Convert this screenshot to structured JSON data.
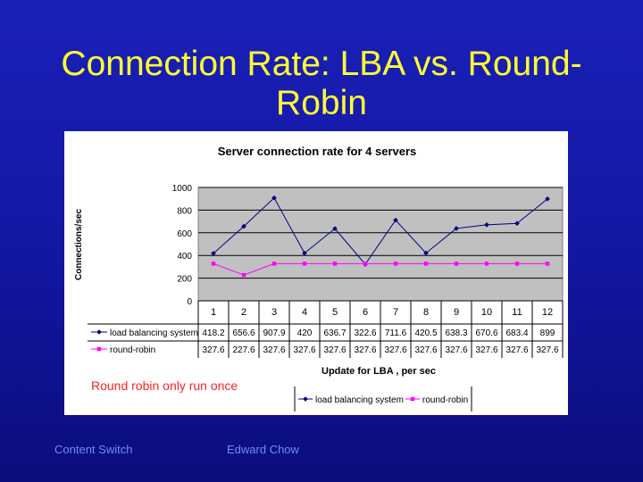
{
  "slide": {
    "title_line1": "Connection Rate: LBA vs. Round-",
    "title_line2": "Robin",
    "note": "Round robin only run once",
    "footer_left": "Content Switch",
    "footer_right": "Edward Chow"
  },
  "colors": {
    "background": "#1216a0",
    "title": "#ffff33",
    "plot_area": "#c0c0c0",
    "lba_series": "#000080",
    "rr_series": "#ff00ff",
    "note": "#ff2222",
    "footer": "#6f8cff"
  },
  "chart_data": {
    "type": "line",
    "title": "Server connection rate for 4 servers",
    "xlabel": "Update for LBA , per sec",
    "ylabel": "Connections/sec",
    "categories": [
      "1",
      "2",
      "3",
      "4",
      "5",
      "6",
      "7",
      "8",
      "9",
      "10",
      "11",
      "12"
    ],
    "ylim": [
      0,
      1000
    ],
    "yticks": [
      0,
      200,
      400,
      600,
      800,
      1000
    ],
    "grid": true,
    "legend_position": "bottom",
    "data_table": true,
    "series": [
      {
        "name": "load balancing system",
        "color": "#000080",
        "marker": "diamond",
        "values": [
          418.2,
          656.6,
          907.9,
          420,
          636.7,
          322.6,
          711.6,
          420.5,
          638.3,
          670.6,
          683.4,
          899
        ]
      },
      {
        "name": "round-robin",
        "color": "#ff00ff",
        "marker": "square",
        "values": [
          327.6,
          227.6,
          327.6,
          327.6,
          327.6,
          327.6,
          327.6,
          327.6,
          327.6,
          327.6,
          327.6,
          327.6
        ]
      }
    ]
  }
}
